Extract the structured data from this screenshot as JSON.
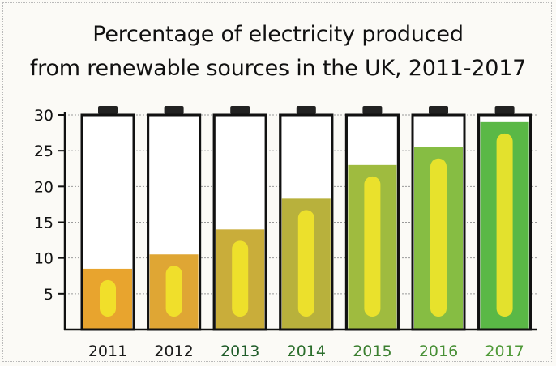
{
  "chart_data": {
    "type": "bar",
    "title_lines": [
      "Percentage of electricity produced",
      "from renewable sources in the UK, 2011-2017"
    ],
    "categories": [
      "2011",
      "2012",
      "2013",
      "2014",
      "2015",
      "2016",
      "2017"
    ],
    "values": [
      8.5,
      10.5,
      14,
      18.3,
      23,
      25.5,
      29
    ],
    "yticks": [
      "30",
      "25",
      "20",
      "15",
      "10",
      "5"
    ],
    "ylim": [
      0,
      30
    ],
    "grid": true,
    "legend": "none",
    "colors": {
      "fill": [
        "#e8a42e",
        "#dfa634",
        "#c9ad3a",
        "#b8b13c",
        "#9fbb3f",
        "#86bd43",
        "#5ab846"
      ],
      "inner": "#f2e62a",
      "category_labels": [
        "#1a1a1a",
        "#1a1a1a",
        "#205c2a",
        "#2b6e2c",
        "#3b7f30",
        "#478f35",
        "#4f9a38"
      ]
    }
  }
}
